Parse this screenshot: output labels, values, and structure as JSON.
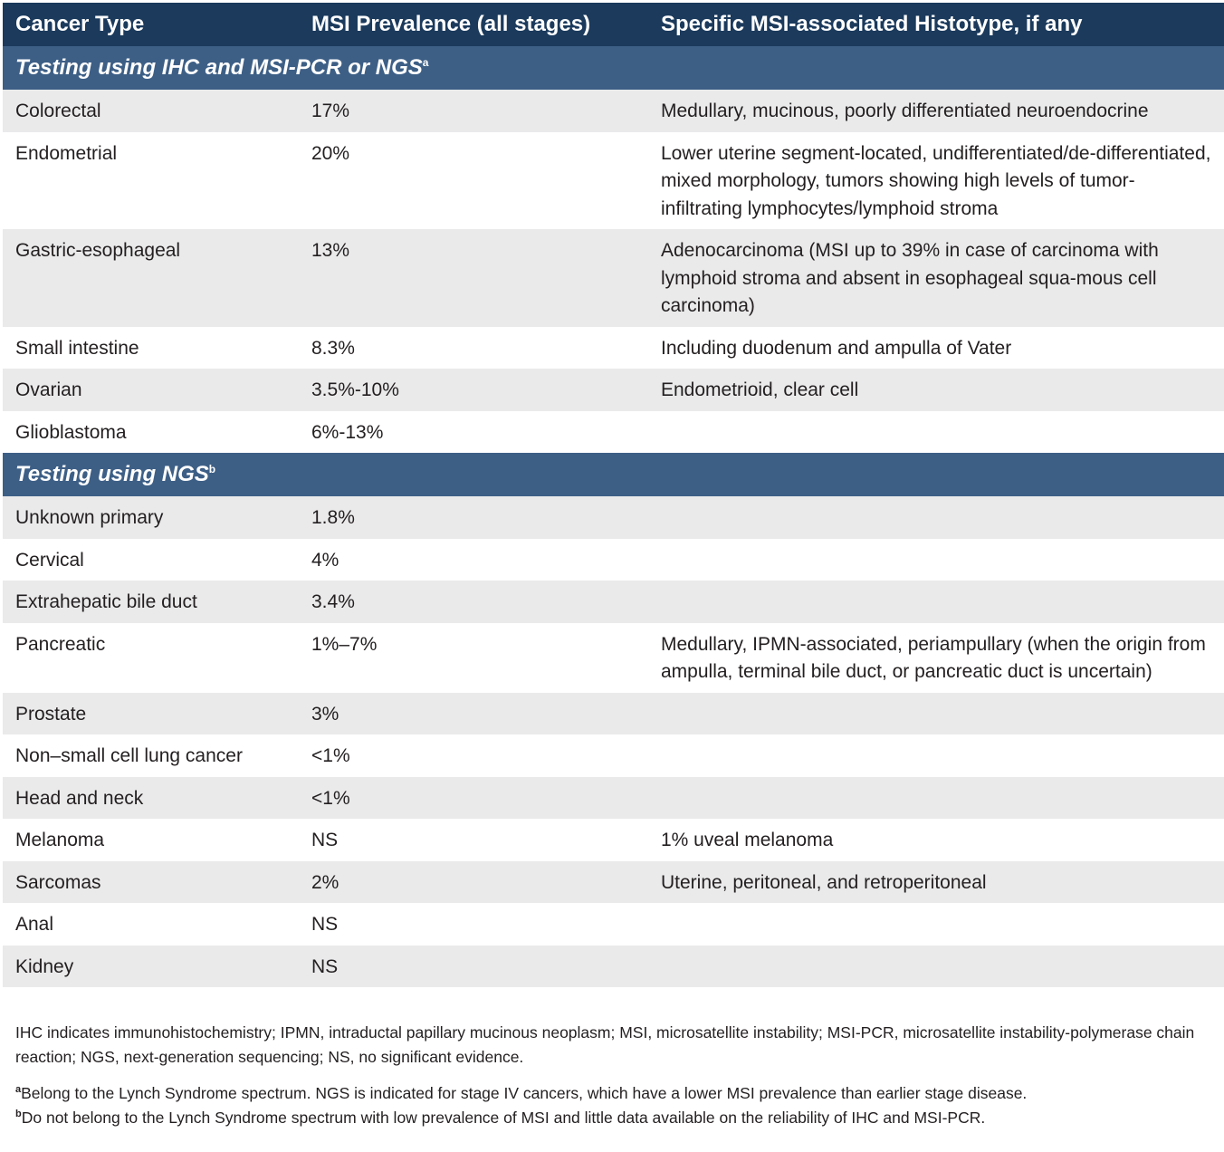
{
  "columns": [
    "Cancer Type",
    "MSI Prevalence (all stages)",
    "Specific MSI-associated Histotype, if any"
  ],
  "sections": [
    {
      "title": "Testing using IHC and MSI-PCR or NGS",
      "marker": "a",
      "rows": [
        {
          "type": "Colorectal",
          "prevalence": "17%",
          "histotype": "Medullary, mucinous, poorly differentiated neuroendocrine"
        },
        {
          "type": "Endometrial",
          "prevalence": "20%",
          "histotype": "Lower uterine segment-located, undifferentiated/de-differentiated, mixed morphology, tumors showing high levels of tumor-infiltrating lymphocytes/lymphoid stroma"
        },
        {
          "type": "Gastric-esophageal",
          "prevalence": "13%",
          "histotype": "Adenocarcinoma (MSI up to 39% in case of carcinoma with lymphoid stroma and absent in esophageal squa-mous cell carcinoma)"
        },
        {
          "type": "Small intestine",
          "prevalence": "8.3%",
          "histotype": "Including duodenum and ampulla of Vater"
        },
        {
          "type": "Ovarian",
          "prevalence": "3.5%-10%",
          "histotype": "Endometrioid, clear cell"
        },
        {
          "type": "Glioblastoma",
          "prevalence": "6%-13%",
          "histotype": ""
        }
      ]
    },
    {
      "title": "Testing using NGS",
      "marker": "b",
      "rows": [
        {
          "type": "Unknown primary",
          "prevalence": "1.8%",
          "histotype": ""
        },
        {
          "type": "Cervical",
          "prevalence": "4%",
          "histotype": ""
        },
        {
          "type": "Extrahepatic bile duct",
          "prevalence": "3.4%",
          "histotype": ""
        },
        {
          "type": "Pancreatic",
          "prevalence": "1%–7%",
          "histotype": "Medullary, IPMN-associated, periampullary (when the origin from ampulla, terminal bile duct, or pancreatic duct is uncertain)"
        },
        {
          "type": "Prostate",
          "prevalence": "3%",
          "histotype": ""
        },
        {
          "type": "Non–small cell lung cancer",
          "prevalence": "<1%",
          "histotype": ""
        },
        {
          "type": "Head and neck",
          "prevalence": "<1%",
          "histotype": ""
        },
        {
          "type": "Melanoma",
          "prevalence": "NS",
          "histotype": "1% uveal melanoma"
        },
        {
          "type": "Sarcomas",
          "prevalence": "2%",
          "histotype": "Uterine, peritoneal, and retroperitoneal"
        },
        {
          "type": "Anal",
          "prevalence": "NS",
          "histotype": ""
        },
        {
          "type": "Kidney",
          "prevalence": "NS",
          "histotype": ""
        }
      ]
    }
  ],
  "footnotes": {
    "abbreviations": "IHC indicates immunohistochemistry; IPMN, intraductal papillary mucinous neoplasm; MSI, microsatellite instability; MSI-PCR, microsatellite instability-polymerase chain reaction; NGS, next-generation sequencing; NS, no significant evidence.",
    "notes": [
      {
        "marker": "a",
        "text": "Belong to the Lynch Syndrome spectrum. NGS is indicated for stage IV cancers, which have a lower MSI prevalence than earlier stage disease."
      },
      {
        "marker": "b",
        "text": "Do not belong to the Lynch Syndrome spectrum with low prevalence of MSI and little data available on the reliability of IHC and MSI-PCR."
      }
    ]
  },
  "colors": {
    "header": "#1b3a5c",
    "section": "#3d5f86",
    "stripe": "#eaeaeb"
  }
}
